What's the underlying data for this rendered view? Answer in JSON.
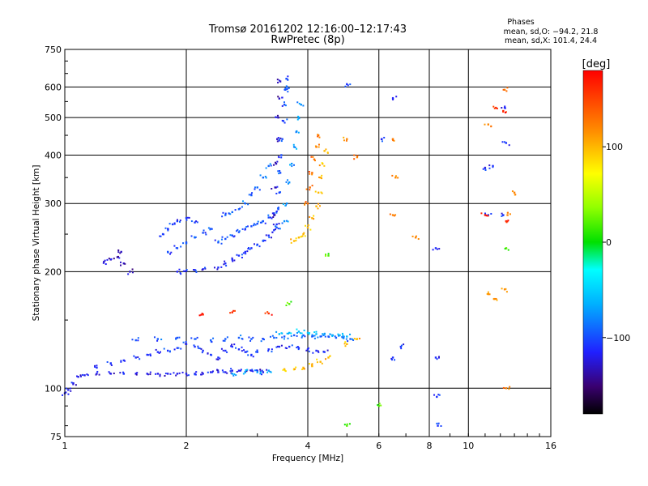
{
  "chart_data": {
    "type": "scatter",
    "title": "Tromsø 20161202 12:16:00–12:17:43",
    "subtitle": "RwPretec (8p)",
    "xlabel": "Frequency [MHz]",
    "ylabel": "Stationary phase Virtual Height [km]",
    "x_scale": "log",
    "y_scale": "log",
    "xlim": [
      1,
      16
    ],
    "ylim": [
      75,
      750
    ],
    "x_ticks": [
      1,
      2,
      4,
      6,
      8,
      10,
      16
    ],
    "x_tick_labels": [
      "1",
      "2",
      "4",
      "6",
      "8",
      "10",
      "16"
    ],
    "y_ticks": [
      75,
      100,
      200,
      300,
      400,
      500,
      600,
      750
    ],
    "y_tick_labels": [
      "75",
      "100",
      "200",
      "300",
      "400",
      "500",
      "600",
      "750"
    ],
    "grid_x": [
      2,
      4,
      6,
      8,
      10
    ],
    "grid_y": [
      100,
      200,
      300,
      400,
      500,
      600
    ],
    "grid": true,
    "stats": {
      "header": "Phases",
      "line_o": "mean, sd,O: −94.2, 21.8",
      "line_x": "mean, sd,X: 101.4, 24.4"
    },
    "colorbar": {
      "label": "[deg]",
      "range": [
        -180,
        180
      ],
      "ticks": [
        100,
        0,
        -100
      ],
      "tick_labels": [
        "100",
        "0",
        "−100"
      ],
      "colormap": "rainbow"
    },
    "traces": [
      {
        "name_hint": "E layer blue",
        "phase": -120,
        "points": [
          [
            1.0,
            97
          ],
          [
            1.02,
            99
          ],
          [
            1.05,
            103
          ],
          [
            1.08,
            107
          ],
          [
            1.12,
            108
          ],
          [
            1.2,
            109
          ],
          [
            1.3,
            109
          ],
          [
            1.4,
            109
          ],
          [
            1.5,
            109
          ],
          [
            1.6,
            109
          ],
          [
            1.7,
            109
          ],
          [
            1.8,
            109
          ],
          [
            1.9,
            109
          ],
          [
            2.0,
            109
          ],
          [
            2.1,
            109
          ],
          [
            2.2,
            109
          ],
          [
            2.3,
            110
          ],
          [
            2.4,
            110
          ],
          [
            2.5,
            110
          ],
          [
            2.6,
            111
          ],
          [
            2.7,
            111
          ],
          [
            2.8,
            110
          ],
          [
            2.9,
            111
          ],
          [
            3.0,
            111
          ],
          [
            3.1,
            110
          ]
        ]
      },
      {
        "name_hint": "E layer cyan",
        "phase": -70,
        "points": [
          [
            2.6,
            109
          ],
          [
            2.8,
            110
          ],
          [
            3.0,
            110
          ],
          [
            3.2,
            111
          ]
        ]
      },
      {
        "name_hint": "Es upper",
        "phase": -110,
        "points": [
          [
            1.2,
            113
          ],
          [
            1.3,
            116
          ],
          [
            1.4,
            118
          ],
          [
            1.5,
            120
          ],
          [
            1.6,
            122
          ],
          [
            1.7,
            124
          ],
          [
            1.8,
            125
          ],
          [
            1.9,
            127
          ],
          [
            2.0,
            130
          ],
          [
            2.1,
            128
          ],
          [
            2.2,
            125
          ],
          [
            2.3,
            122
          ],
          [
            2.4,
            120
          ],
          [
            2.5,
            125
          ],
          [
            2.6,
            128
          ],
          [
            2.7,
            126
          ],
          [
            2.8,
            124
          ],
          [
            2.9,
            122
          ],
          [
            3.0,
            124
          ],
          [
            3.2,
            126
          ],
          [
            3.4,
            128
          ],
          [
            3.6,
            128
          ],
          [
            3.8,
            127
          ],
          [
            4.0,
            126
          ],
          [
            4.2,
            125
          ],
          [
            4.4,
            124
          ]
        ]
      },
      {
        "name_hint": "Es band",
        "phase": -95,
        "points": [
          [
            1.5,
            133
          ],
          [
            1.7,
            134
          ],
          [
            1.9,
            135
          ],
          [
            2.1,
            134
          ],
          [
            2.3,
            133
          ],
          [
            2.5,
            134
          ],
          [
            2.7,
            135
          ],
          [
            2.9,
            134
          ],
          [
            3.1,
            134
          ],
          [
            3.3,
            135
          ],
          [
            3.5,
            136
          ],
          [
            3.7,
            137
          ],
          [
            3.9,
            137
          ],
          [
            4.1,
            136
          ],
          [
            4.3,
            136
          ],
          [
            4.5,
            136
          ],
          [
            4.7,
            135
          ],
          [
            4.9,
            135
          ],
          [
            5.1,
            134
          ]
        ]
      },
      {
        "name_hint": "Es cyan",
        "phase": -60,
        "points": [
          [
            3.4,
            138
          ],
          [
            3.6,
            139
          ],
          [
            3.8,
            140
          ],
          [
            4.0,
            139
          ],
          [
            4.2,
            138
          ],
          [
            4.4,
            138
          ],
          [
            4.6,
            137
          ],
          [
            4.8,
            137
          ],
          [
            5.0,
            136
          ]
        ]
      },
      {
        "name_hint": "Es ext yellow",
        "phase": 100,
        "points": [
          [
            3.5,
            112
          ],
          [
            3.7,
            112
          ],
          [
            3.9,
            113
          ],
          [
            4.1,
            114
          ],
          [
            4.3,
            117
          ],
          [
            4.5,
            120
          ],
          [
            5.0,
            130
          ],
          [
            5.3,
            134
          ]
        ]
      },
      {
        "name_hint": "Es red",
        "phase": 160,
        "points": [
          [
            2.2,
            155
          ],
          [
            2.6,
            157
          ],
          [
            3.2,
            156
          ]
        ]
      },
      {
        "name_hint": "F patch low",
        "phase": -130,
        "points": [
          [
            1.25,
            212
          ],
          [
            1.3,
            215
          ],
          [
            1.35,
            218
          ],
          [
            1.38,
            225
          ],
          [
            1.4,
            210
          ],
          [
            1.45,
            200
          ]
        ]
      },
      {
        "name_hint": "F trace 200",
        "phase": -115,
        "points": [
          [
            1.9,
            200
          ],
          [
            2.0,
            201
          ],
          [
            2.1,
            202
          ],
          [
            2.2,
            203
          ]
        ]
      },
      {
        "name_hint": "F mid 250",
        "phase": -100,
        "points": [
          [
            1.8,
            225
          ],
          [
            1.9,
            230
          ],
          [
            2.0,
            238
          ],
          [
            2.1,
            245
          ],
          [
            2.2,
            252
          ],
          [
            2.3,
            258
          ]
        ]
      },
      {
        "name_hint": "F upper 270",
        "phase": -105,
        "points": [
          [
            1.75,
            250
          ],
          [
            1.8,
            258
          ],
          [
            1.85,
            265
          ],
          [
            1.9,
            270
          ],
          [
            2.0,
            275
          ],
          [
            2.1,
            268
          ]
        ]
      },
      {
        "name_hint": "F ext 210",
        "phase": -110,
        "points": [
          [
            2.4,
            205
          ],
          [
            2.5,
            210
          ],
          [
            2.6,
            215
          ],
          [
            2.7,
            220
          ],
          [
            2.8,
            225
          ],
          [
            2.9,
            230
          ],
          [
            3.0,
            235
          ],
          [
            3.1,
            240
          ],
          [
            3.2,
            248
          ],
          [
            3.3,
            256
          ],
          [
            3.35,
            265
          ]
        ]
      },
      {
        "name_hint": "F ext 240",
        "phase": -100,
        "points": [
          [
            2.4,
            238
          ],
          [
            2.5,
            243
          ],
          [
            2.6,
            248
          ],
          [
            2.7,
            253
          ],
          [
            2.8,
            258
          ],
          [
            2.9,
            262
          ],
          [
            3.0,
            266
          ],
          [
            3.1,
            270
          ],
          [
            3.2,
            276
          ],
          [
            3.3,
            283
          ]
        ]
      },
      {
        "name_hint": "F ext 280",
        "phase": -90,
        "points": [
          [
            2.5,
            280
          ],
          [
            2.6,
            285
          ],
          [
            2.7,
            290
          ],
          [
            2.8,
            300
          ],
          [
            2.9,
            315
          ],
          [
            3.0,
            330
          ],
          [
            3.1,
            350
          ],
          [
            3.2,
            375
          ]
        ]
      },
      {
        "name_hint": "F2 cusp blue",
        "phase": -100,
        "points": [
          [
            3.35,
            260
          ],
          [
            3.38,
            290
          ],
          [
            3.4,
            320
          ],
          [
            3.42,
            360
          ],
          [
            3.44,
            400
          ],
          [
            3.46,
            440
          ],
          [
            3.48,
            490
          ],
          [
            3.5,
            540
          ],
          [
            3.52,
            590
          ],
          [
            3.54,
            630
          ],
          [
            3.55,
            600
          ]
        ]
      },
      {
        "name_hint": "F2 cusp cyan",
        "phase": -75,
        "points": [
          [
            3.5,
            270
          ],
          [
            3.55,
            300
          ],
          [
            3.6,
            340
          ],
          [
            3.65,
            380
          ],
          [
            3.7,
            420
          ],
          [
            3.75,
            460
          ],
          [
            3.8,
            500
          ],
          [
            3.85,
            540
          ]
        ]
      },
      {
        "name_hint": "F2 cusp indigo",
        "phase": -130,
        "points": [
          [
            3.3,
            280
          ],
          [
            3.32,
            330
          ],
          [
            3.34,
            380
          ],
          [
            3.36,
            440
          ],
          [
            3.38,
            500
          ],
          [
            3.4,
            560
          ],
          [
            3.42,
            620
          ]
        ]
      },
      {
        "name_hint": "X cusp yellow",
        "phase": 100,
        "points": [
          [
            3.7,
            240
          ],
          [
            3.8,
            245
          ],
          [
            3.9,
            250
          ],
          [
            4.0,
            260
          ],
          [
            4.1,
            275
          ],
          [
            4.2,
            295
          ],
          [
            4.25,
            320
          ],
          [
            4.3,
            350
          ],
          [
            4.35,
            380
          ],
          [
            4.4,
            410
          ]
        ]
      },
      {
        "name_hint": "X cusp orange",
        "phase": 130,
        "points": [
          [
            4.0,
            300
          ],
          [
            4.05,
            330
          ],
          [
            4.1,
            360
          ],
          [
            4.15,
            390
          ],
          [
            4.2,
            420
          ],
          [
            4.25,
            450
          ]
        ]
      },
      {
        "name_hint": "scatter far blue",
        "phase": -110,
        "points": [
          [
            5.0,
            610
          ],
          [
            6.5,
            560
          ],
          [
            8.3,
            230
          ],
          [
            8.3,
            120
          ],
          [
            8.35,
            95
          ],
          [
            8.4,
            80
          ],
          [
            11.0,
            370
          ],
          [
            11.5,
            375
          ],
          [
            11.2,
            280
          ],
          [
            12.2,
            280
          ],
          [
            12.3,
            530
          ],
          [
            12.4,
            430
          ],
          [
            6.5,
            120
          ],
          [
            6.8,
            128
          ],
          [
            6.1,
            440
          ]
        ]
      },
      {
        "name_hint": "scatter far warm",
        "phase": 120,
        "points": [
          [
            6.5,
            440
          ],
          [
            6.6,
            350
          ],
          [
            6.5,
            280
          ],
          [
            7.4,
            245
          ],
          [
            11.2,
            480
          ],
          [
            12.3,
            590
          ],
          [
            12.5,
            280
          ],
          [
            11.2,
            175
          ],
          [
            11.6,
            170
          ],
          [
            12.3,
            180
          ],
          [
            12.4,
            100
          ],
          [
            13.0,
            320
          ],
          [
            5.0,
            440
          ],
          [
            5.3,
            395
          ]
        ]
      },
      {
        "name_hint": "scatter far red",
        "phase": 165,
        "points": [
          [
            11.7,
            530
          ],
          [
            12.2,
            520
          ],
          [
            11.0,
            280
          ],
          [
            12.4,
            270
          ]
        ]
      },
      {
        "name_hint": "scatter far green",
        "phase": 20,
        "points": [
          [
            12.4,
            230
          ],
          [
            6.0,
            90
          ],
          [
            5.0,
            80
          ],
          [
            4.5,
            220
          ],
          [
            3.6,
            165
          ]
        ]
      }
    ]
  }
}
